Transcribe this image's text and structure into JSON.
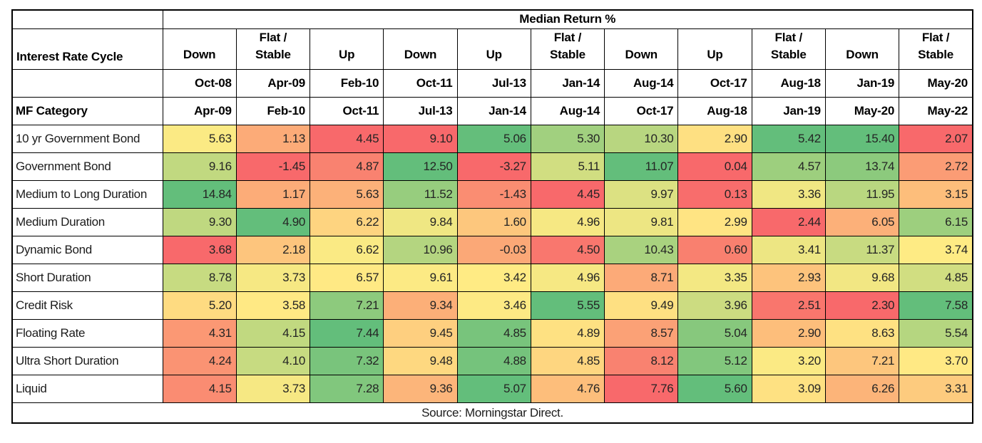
{
  "chart_data": {
    "type": "heatmap",
    "title": "Median Return %",
    "column_group_header": "Interest Rate Cycle",
    "row_label_header": "MF Category",
    "columns": [
      {
        "cycle": "Down",
        "start": "Oct-08",
        "end": "Apr-09"
      },
      {
        "cycle": "Flat /\nStable",
        "start": "Apr-09",
        "end": "Feb-10"
      },
      {
        "cycle": "Up",
        "start": "Feb-10",
        "end": "Oct-11"
      },
      {
        "cycle": "Down",
        "start": "Oct-11",
        "end": "Jul-13"
      },
      {
        "cycle": "Up",
        "start": "Jul-13",
        "end": "Jan-14"
      },
      {
        "cycle": "Flat /\nStable",
        "start": "Jan-14",
        "end": "Aug-14"
      },
      {
        "cycle": "Down",
        "start": "Aug-14",
        "end": "Oct-17"
      },
      {
        "cycle": "Up",
        "start": "Oct-17",
        "end": "Aug-18"
      },
      {
        "cycle": "Flat /\nStable",
        "start": "Aug-18",
        "end": "Jan-19"
      },
      {
        "cycle": "Down",
        "start": "Jan-19",
        "end": "May-20"
      },
      {
        "cycle": "Flat /\nStable",
        "start": "May-20",
        "end": "May-22"
      }
    ],
    "rows": [
      {
        "category": "10 yr Government Bond",
        "values": [
          5.63,
          1.13,
          4.45,
          9.1,
          5.06,
          5.3,
          10.3,
          2.9,
          5.42,
          15.4,
          2.07
        ]
      },
      {
        "category": "Government Bond",
        "values": [
          9.16,
          -1.45,
          4.87,
          12.5,
          -3.27,
          5.11,
          11.07,
          0.04,
          4.57,
          13.74,
          2.72
        ]
      },
      {
        "category": "Medium to Long Duration",
        "values": [
          14.84,
          1.17,
          5.63,
          11.52,
          -1.43,
          4.45,
          9.97,
          0.13,
          3.36,
          11.95,
          3.15
        ]
      },
      {
        "category": "Medium Duration",
        "values": [
          9.3,
          4.9,
          6.22,
          9.84,
          1.6,
          4.96,
          9.81,
          2.99,
          2.44,
          6.05,
          6.15
        ]
      },
      {
        "category": "Dynamic Bond",
        "values": [
          3.68,
          2.18,
          6.62,
          10.96,
          -0.03,
          4.5,
          10.43,
          0.6,
          3.41,
          11.37,
          3.74
        ]
      },
      {
        "category": "Short Duration",
        "values": [
          8.78,
          3.73,
          6.57,
          9.61,
          3.42,
          4.96,
          8.71,
          3.35,
          2.93,
          9.68,
          4.85
        ]
      },
      {
        "category": "Credit Risk",
        "values": [
          5.2,
          3.58,
          7.21,
          9.34,
          3.46,
          5.55,
          9.49,
          3.96,
          2.51,
          2.3,
          7.58
        ]
      },
      {
        "category": "Floating Rate",
        "values": [
          4.31,
          4.15,
          7.44,
          9.45,
          4.85,
          4.89,
          8.57,
          5.04,
          2.9,
          8.63,
          5.54
        ]
      },
      {
        "category": "Ultra Short Duration",
        "values": [
          4.24,
          4.1,
          7.32,
          9.48,
          4.88,
          4.85,
          8.12,
          5.12,
          3.2,
          7.21,
          3.7
        ]
      },
      {
        "category": "Liquid",
        "values": [
          4.15,
          3.73,
          7.28,
          9.36,
          5.07,
          4.76,
          7.76,
          5.6,
          3.09,
          6.26,
          3.31
        ]
      }
    ],
    "value_format": "2 decimals",
    "color_scale": {
      "mode": "per-column linear, midpoint at column median",
      "min_color": "#F8696B",
      "mid_color": "#FFEB84",
      "max_color": "#63BE7B",
      "border_color": "#000000"
    },
    "source": "Source: Morningstar Direct.",
    "legend_position": "none",
    "grid": true
  }
}
